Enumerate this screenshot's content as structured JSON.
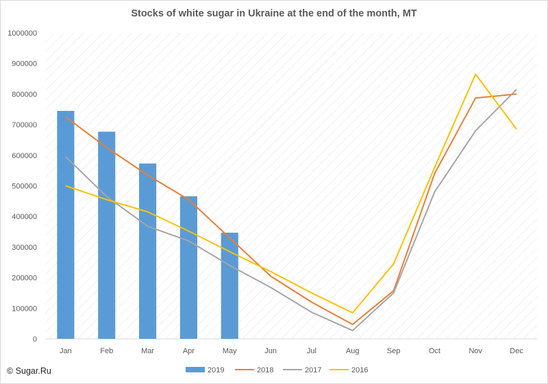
{
  "chart_data": {
    "type": "bar",
    "title": "Stocks of white sugar in Ukraine at the end of the month, MT",
    "categories": [
      "Jan",
      "Feb",
      "Mar",
      "Apr",
      "May",
      "Jun",
      "Jul",
      "Aug",
      "Sep",
      "Oct",
      "Nov",
      "Dec"
    ],
    "ylim": [
      0,
      1000000
    ],
    "yticks": [
      "0",
      "100000",
      "200000",
      "300000",
      "400000",
      "500000",
      "600000",
      "700000",
      "800000",
      "900000",
      "1000000"
    ],
    "grid": "diagonal-hatch",
    "legend_position": "bottom",
    "series": [
      {
        "name": "2019",
        "type": "bar",
        "color": "#5b9bd5",
        "values": [
          745000,
          677000,
          573000,
          466000,
          347000,
          null,
          null,
          null,
          null,
          null,
          null,
          null
        ]
      },
      {
        "name": "2018",
        "type": "line",
        "color": "#ed7d31",
        "values": [
          725000,
          625000,
          535000,
          455000,
          330000,
          205000,
          120000,
          47000,
          157000,
          540000,
          787000,
          800000
        ]
      },
      {
        "name": "2017",
        "type": "line",
        "color": "#a5a5a5",
        "values": [
          595000,
          465000,
          368000,
          320000,
          240000,
          168000,
          87000,
          27000,
          150000,
          480000,
          680000,
          815000
        ]
      },
      {
        "name": "2016",
        "type": "line",
        "color": "#ffc000",
        "values": [
          500000,
          455000,
          415000,
          352000,
          285000,
          220000,
          150000,
          85000,
          245000,
          560000,
          865000,
          685000
        ]
      }
    ]
  },
  "credit": "© Sugar.Ru"
}
